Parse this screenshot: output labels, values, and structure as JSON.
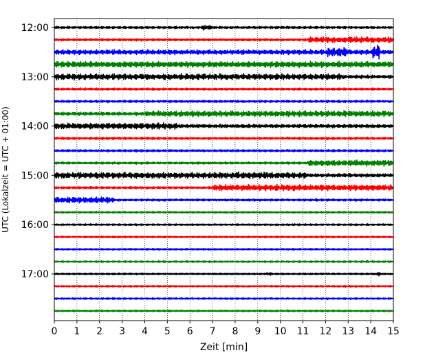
{
  "chart_data": {
    "type": "line",
    "xlabel": "Zeit  [min]",
    "ylabel": "UTC (Lokalzeit = UTC + 01:00)",
    "xlim": [
      0,
      15
    ],
    "x_ticks": [
      0,
      1,
      2,
      3,
      4,
      5,
      6,
      7,
      8,
      9,
      10,
      11,
      12,
      13,
      14,
      15
    ],
    "y_tick_labels": [
      "12:00",
      "13:00",
      "14:00",
      "15:00",
      "16:00",
      "17:00"
    ],
    "y_tick_rows": [
      0,
      4,
      8,
      12,
      16,
      20
    ],
    "x_grid": "dotted vertical at each minute",
    "trace_colors": [
      "#000000",
      "#ff0000",
      "#0000ff",
      "#008000"
    ],
    "trace_interval_minutes": 15,
    "traces": [
      {
        "start": "12:00",
        "color": "#000000",
        "amp": 2,
        "events": [
          [
            6.5,
            7.0,
            4
          ]
        ]
      },
      {
        "start": "12:15",
        "color": "#ff0000",
        "amp": 2,
        "events": [
          [
            11.2,
            15.0,
            5
          ]
        ]
      },
      {
        "start": "12:30",
        "color": "#0000ff",
        "amp": 3,
        "events": [
          [
            0.0,
            15.0,
            4
          ],
          [
            12.1,
            13.0,
            8
          ],
          [
            14.1,
            14.4,
            13
          ]
        ]
      },
      {
        "start": "12:45",
        "color": "#008000",
        "amp": 4,
        "events": [
          [
            0.0,
            15.0,
            5
          ]
        ]
      },
      {
        "start": "13:00",
        "color": "#000000",
        "amp": 3,
        "events": [
          [
            0.0,
            12.8,
            5
          ]
        ]
      },
      {
        "start": "13:15",
        "color": "#ff0000",
        "amp": 2,
        "events": []
      },
      {
        "start": "13:30",
        "color": "#0000ff",
        "amp": 2,
        "events": []
      },
      {
        "start": "13:45",
        "color": "#008000",
        "amp": 3,
        "events": [
          [
            4.0,
            15.0,
            5
          ]
        ]
      },
      {
        "start": "14:00",
        "color": "#000000",
        "amp": 3,
        "events": [
          [
            0.0,
            5.5,
            5
          ]
        ]
      },
      {
        "start": "14:15",
        "color": "#ff0000",
        "amp": 2,
        "events": []
      },
      {
        "start": "14:30",
        "color": "#0000ff",
        "amp": 2,
        "events": []
      },
      {
        "start": "14:45",
        "color": "#008000",
        "amp": 2,
        "events": [
          [
            11.2,
            15.0,
            5
          ]
        ]
      },
      {
        "start": "15:00",
        "color": "#000000",
        "amp": 3,
        "events": [
          [
            0.0,
            11.2,
            5
          ],
          [
            8.0,
            9.5,
            6
          ]
        ]
      },
      {
        "start": "15:15",
        "color": "#ff0000",
        "amp": 2,
        "events": [
          [
            7.0,
            15.0,
            5
          ]
        ]
      },
      {
        "start": "15:30",
        "color": "#0000ff",
        "amp": 2,
        "events": [
          [
            0.0,
            2.6,
            5
          ]
        ]
      },
      {
        "start": "15:45",
        "color": "#008000",
        "amp": 1.5,
        "events": []
      },
      {
        "start": "16:00",
        "color": "#000000",
        "amp": 1.5,
        "events": []
      },
      {
        "start": "16:15",
        "color": "#ff0000",
        "amp": 1.5,
        "events": []
      },
      {
        "start": "16:30",
        "color": "#0000ff",
        "amp": 1.5,
        "events": []
      },
      {
        "start": "16:45",
        "color": "#008000",
        "amp": 1.5,
        "events": []
      },
      {
        "start": "17:00",
        "color": "#000000",
        "amp": 1.5,
        "events": [
          [
            9.4,
            9.6,
            3
          ],
          [
            14.2,
            14.5,
            3
          ]
        ]
      },
      {
        "start": "17:15",
        "color": "#ff0000",
        "amp": 1.5,
        "events": []
      },
      {
        "start": "17:30",
        "color": "#0000ff",
        "amp": 1.5,
        "events": []
      },
      {
        "start": "17:45",
        "color": "#008000",
        "amp": 1.5,
        "events": []
      }
    ]
  }
}
